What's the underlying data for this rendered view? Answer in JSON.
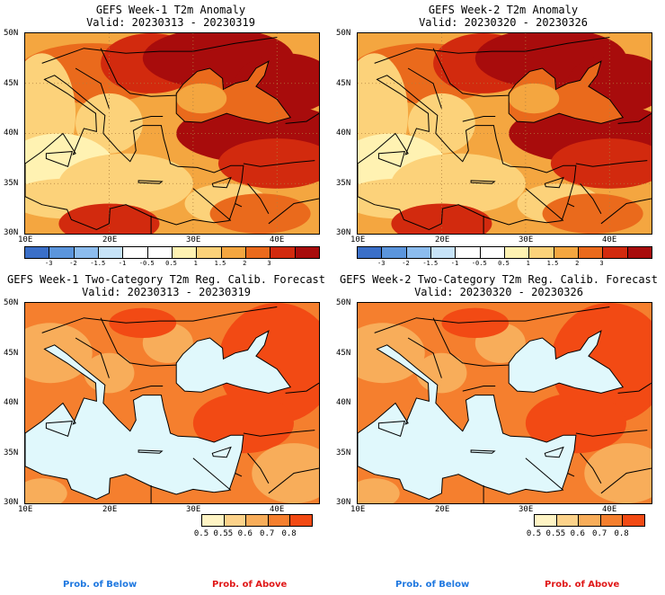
{
  "colors": {
    "anom": [
      "#3a6fc8",
      "#5b95dc",
      "#8cbcee",
      "#c7e3f8",
      "#ffffff",
      "#ffffff",
      "#fff2b2",
      "#fcd27a",
      "#f4a640",
      "#ea6a1c",
      "#d22a0e",
      "#a80c0c"
    ],
    "prob": [
      "#fff4c4",
      "#fcd28a",
      "#f8ad5a",
      "#f57f2e",
      "#f24a14"
    ],
    "sea_anom": "#fde9a0",
    "sea_prob": "#e0f8fc",
    "below_label": "#1f78e0",
    "above_label": "#e01818"
  },
  "panels": [
    {
      "title": "GEFS Week-1 T2m Anomaly",
      "valid": "Valid: 20230313 - 20230319",
      "type": "anomaly",
      "lat_labels": [
        "50N",
        "45N",
        "40N",
        "35N",
        "30N"
      ],
      "lon_labels": [
        "10E",
        "20E",
        "30E",
        "40E"
      ],
      "colorbar_ticks": [
        "-3",
        "-2",
        "-1.5",
        "-1",
        "-0.5",
        "0.5",
        "1",
        "1.5",
        "2",
        "3"
      ]
    },
    {
      "title": "GEFS Week-2 T2m Anomaly",
      "valid": "Valid: 20230320 - 20230326",
      "type": "anomaly",
      "lat_labels": [
        "50N",
        "45N",
        "40N",
        "35N",
        "30N"
      ],
      "lon_labels": [
        "10E",
        "20E",
        "30E",
        "40E"
      ],
      "colorbar_ticks": [
        "-3",
        "-2",
        "-1.5",
        "-1",
        "-0.5",
        "0.5",
        "1",
        "1.5",
        "2",
        "3"
      ]
    },
    {
      "title": "GEFS Week-1 Two-Category T2m Reg. Calib. Forecast",
      "valid": "Valid: 20230313 - 20230319",
      "type": "probability",
      "lat_labels": [
        "50N",
        "45N",
        "40N",
        "35N",
        "30N"
      ],
      "lon_labels": [
        "10E",
        "20E",
        "30E",
        "40E"
      ],
      "colorbar_ticks": [
        "0.5",
        "0.55",
        "0.6",
        "0.7",
        "0.8"
      ]
    },
    {
      "title": "GEFS Week-2 Two-Category T2m Reg. Calib. Forecast",
      "valid": "Valid: 20230320 - 20230326",
      "type": "probability",
      "lat_labels": [
        "50N",
        "45N",
        "40N",
        "35N",
        "30N"
      ],
      "lon_labels": [
        "10E",
        "20E",
        "30E",
        "40E"
      ],
      "colorbar_ticks": [
        "0.5",
        "0.55",
        "0.6",
        "0.7",
        "0.8"
      ]
    }
  ],
  "footer": [
    {
      "below": "Prob. of Below",
      "above": "Prob. of Above"
    },
    {
      "below": "Prob. of Below",
      "above": "Prob. of Above"
    }
  ]
}
